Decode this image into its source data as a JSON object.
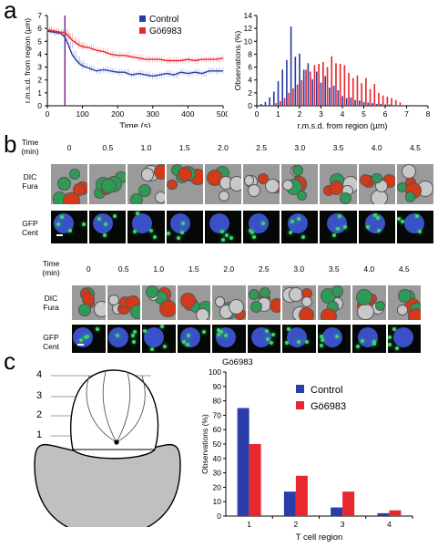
{
  "panels": {
    "a": "a",
    "b": "b",
    "c": "c"
  },
  "chart_data": [
    {
      "type": "line",
      "xlabel": "Time (s)",
      "ylabel": "r.m.s.d. from region (µm)",
      "xlim": [
        0,
        500
      ],
      "ylim": [
        0,
        7
      ],
      "xticks": [
        0,
        100,
        200,
        300,
        400,
        500
      ],
      "yticks": [
        0,
        1,
        2,
        3,
        4,
        5,
        6,
        7
      ],
      "legend_position": "top-right",
      "marker_line_x": 50,
      "series": [
        {
          "name": "Control",
          "color": "#2b3da8",
          "x": [
            0,
            20,
            40,
            50,
            60,
            70,
            80,
            90,
            100,
            120,
            140,
            160,
            180,
            200,
            220,
            240,
            260,
            280,
            300,
            320,
            340,
            360,
            380,
            400,
            420,
            440,
            460,
            480,
            500
          ],
          "y": [
            5.8,
            5.7,
            5.6,
            5.3,
            4.7,
            4.0,
            3.6,
            3.3,
            3.1,
            2.9,
            2.7,
            2.8,
            2.7,
            2.6,
            2.6,
            2.4,
            2.5,
            2.4,
            2.3,
            2.4,
            2.5,
            2.4,
            2.6,
            2.5,
            2.6,
            2.5,
            2.7,
            2.7,
            2.7
          ]
        },
        {
          "name": "Gö6983",
          "color": "#e8282e",
          "x": [
            0,
            20,
            40,
            50,
            60,
            70,
            80,
            90,
            100,
            120,
            140,
            160,
            180,
            200,
            220,
            240,
            260,
            280,
            300,
            320,
            340,
            360,
            380,
            400,
            420,
            440,
            460,
            480,
            500
          ],
          "y": [
            5.9,
            5.8,
            5.7,
            5.7,
            5.4,
            5.1,
            4.9,
            4.7,
            4.6,
            4.5,
            4.3,
            4.2,
            4.0,
            3.9,
            3.9,
            3.8,
            3.7,
            3.6,
            3.6,
            3.6,
            3.5,
            3.5,
            3.5,
            3.6,
            3.5,
            3.6,
            3.6,
            3.6,
            3.7
          ]
        }
      ]
    },
    {
      "type": "bar",
      "xlabel": "r.m.s.d. from region (µm)",
      "ylabel": "Observations (%)",
      "xlim": [
        0,
        8
      ],
      "ylim": [
        0,
        14
      ],
      "xticks": [
        0,
        1,
        2,
        3,
        4,
        5,
        6,
        7,
        8
      ],
      "yticks": [
        0,
        2,
        4,
        6,
        8,
        10,
        12,
        14
      ],
      "bin_width": 0.2,
      "series": [
        {
          "name": "Control",
          "color": "#2b3da8",
          "x": [
            0.2,
            0.4,
            0.6,
            0.8,
            1.0,
            1.2,
            1.4,
            1.6,
            1.8,
            2.0,
            2.2,
            2.4,
            2.6,
            2.8,
            3.0,
            3.2,
            3.4,
            3.6,
            3.8,
            4.0,
            4.2,
            4.4,
            4.6,
            4.8,
            5.0,
            5.2,
            5.4,
            5.6,
            5.8,
            6.0,
            6.2
          ],
          "values": [
            0.3,
            0.6,
            1.3,
            2.2,
            3.8,
            5.6,
            7.1,
            12.3,
            7.6,
            8.1,
            5.6,
            6.6,
            4.1,
            5.3,
            3.6,
            4.6,
            2.8,
            3.1,
            2.4,
            1.5,
            1.2,
            1.3,
            0.9,
            0.8,
            0.6,
            0.5,
            0.4,
            0.3,
            0.3,
            0.2,
            0.2
          ]
        },
        {
          "name": "Gö6983",
          "color": "#e8282e",
          "x": [
            0.9,
            1.1,
            1.3,
            1.5,
            1.7,
            1.9,
            2.1,
            2.3,
            2.5,
            2.7,
            2.9,
            3.1,
            3.3,
            3.5,
            3.7,
            3.9,
            4.1,
            4.3,
            4.5,
            4.7,
            4.9,
            5.1,
            5.3,
            5.5,
            5.7,
            5.9,
            6.1,
            6.3,
            6.5,
            6.7
          ],
          "values": [
            0.4,
            0.7,
            1.2,
            2.0,
            2.7,
            3.3,
            4.0,
            5.6,
            5.3,
            6.3,
            6.5,
            6.8,
            6.0,
            7.7,
            6.6,
            6.5,
            6.3,
            5.1,
            4.3,
            4.7,
            3.5,
            4.3,
            2.6,
            3.4,
            2.0,
            1.6,
            1.4,
            1.2,
            0.9,
            0.5
          ]
        }
      ]
    },
    {
      "type": "bar",
      "xlabel": "T cell region",
      "ylabel": "Observations (%)",
      "categories": [
        "1",
        "2",
        "3",
        "4"
      ],
      "ylim": [
        0,
        100
      ],
      "yticks": [
        0,
        10,
        20,
        30,
        40,
        50,
        60,
        70,
        80,
        90,
        100
      ],
      "legend_position": "top-right",
      "series": [
        {
          "name": "Control",
          "color": "#2b3da8",
          "values": [
            75,
            17,
            6,
            2
          ]
        },
        {
          "name": "Gö6983",
          "color": "#e8282e",
          "values": [
            50,
            28,
            17,
            4
          ]
        }
      ]
    }
  ],
  "panel_b": {
    "time_header": "Time\n(min)",
    "times": [
      "0",
      "0.5",
      "1.0",
      "1.5",
      "2.0",
      "2.5",
      "3.0",
      "3.5",
      "4.0",
      "4.5"
    ],
    "row_dic": "DIC\nFura",
    "row_gfp": "GFP\nCent",
    "second_set_caption": "Gö6983"
  },
  "panel_c": {
    "region_labels": [
      "4",
      "3",
      "2",
      "1"
    ]
  },
  "colors": {
    "control": "#2b3da8",
    "drug": "#e8282e",
    "marker": "#7a1a8c"
  }
}
